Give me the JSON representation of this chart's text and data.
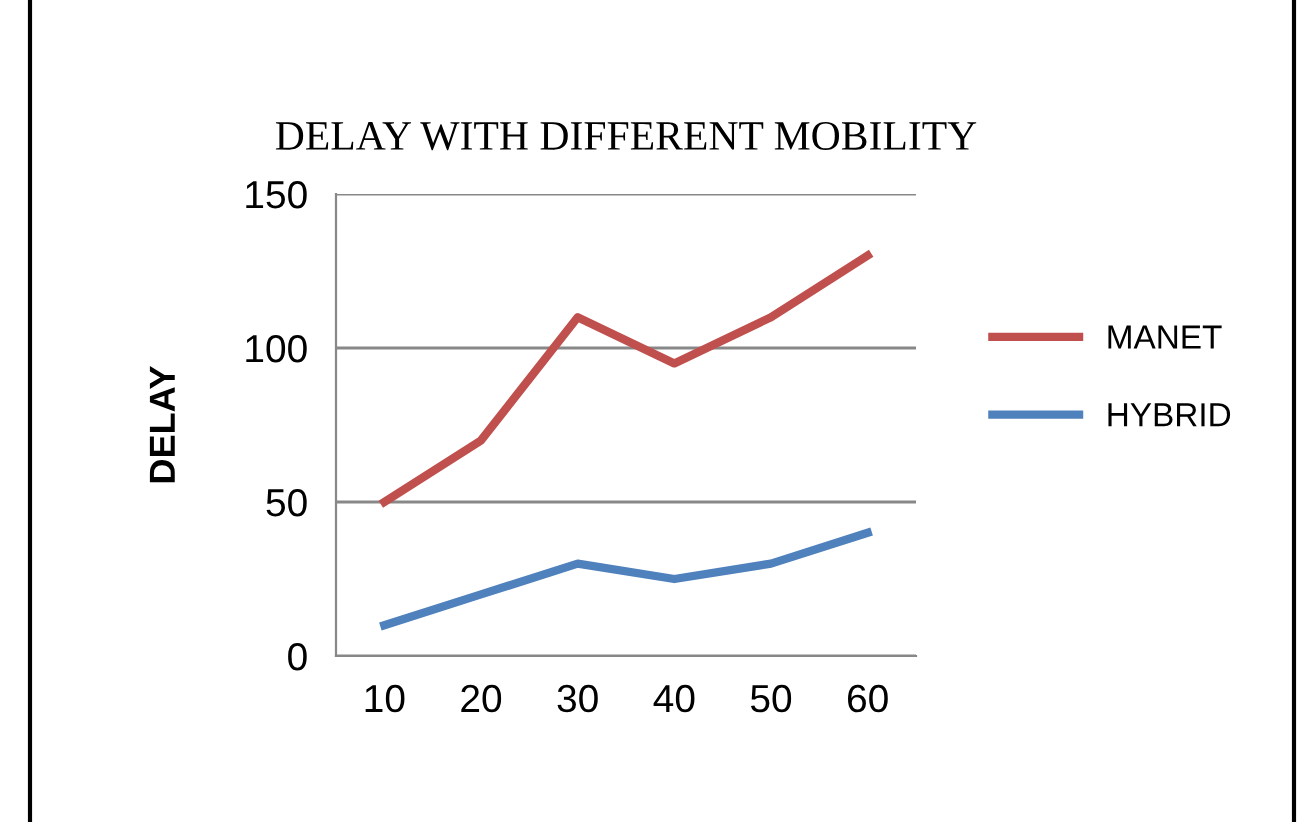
{
  "chart_data": {
    "type": "line",
    "title": "DELAY WITH DIFFERENT MOBILITY",
    "ylabel": "DELAY",
    "categories": [
      "10",
      "20",
      "30",
      "40",
      "50",
      "60"
    ],
    "series": [
      {
        "name": "MANET",
        "color": "#c0504d",
        "values": [
          50,
          70,
          110,
          95,
          110,
          130
        ]
      },
      {
        "name": "HYBRID",
        "color": "#4f81bd",
        "values": [
          10,
          20,
          30,
          25,
          30,
          40
        ]
      }
    ],
    "ylim": [
      0,
      150
    ],
    "yticks": [
      0,
      50,
      100,
      150
    ],
    "grid": "y",
    "legend": "right",
    "marker": "none",
    "line_style": "solid"
  }
}
